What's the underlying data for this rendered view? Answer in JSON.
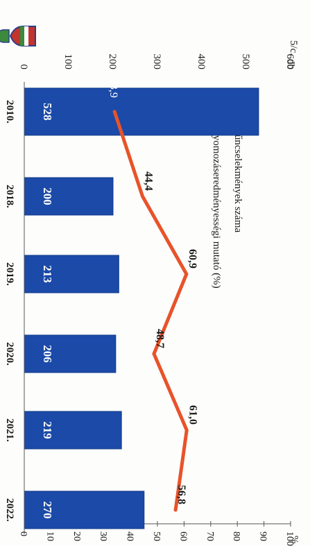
{
  "page": {
    "label": "5/c."
  },
  "chart_data": {
    "type": "bar",
    "orientation": "rotated-90-clockwise",
    "categories": [
      "2010.",
      "2018.",
      "2019.",
      "2020.",
      "2021.",
      "2022."
    ],
    "series": [
      {
        "name": "Bűncselekmények száma",
        "kind": "bar",
        "axis": "left",
        "values": [
          528,
          200,
          213,
          206,
          219,
          270
        ],
        "data_labels": [
          "528",
          "200",
          "213",
          "206",
          "219",
          "270"
        ],
        "color": "#1b4aa8"
      },
      {
        "name": "Nyomozáseredményességi mutató (%)",
        "kind": "line",
        "axis": "right",
        "values": [
          33.9,
          44.4,
          60.9,
          48.7,
          61.0,
          56.8
        ],
        "data_labels": [
          "33,9",
          "44,4",
          "60,9",
          "48,7",
          "61,0",
          "56,8"
        ],
        "color": "#e8532a"
      }
    ],
    "left_axis": {
      "unit": "db",
      "range": [
        0,
        600
      ],
      "ticks": [
        0,
        100,
        200,
        300,
        400,
        500,
        600
      ],
      "tick_labels": [
        "0",
        "100",
        "200",
        "300",
        "400",
        "500",
        "600"
      ]
    },
    "right_axis": {
      "unit": "%",
      "range": [
        0,
        100
      ],
      "ticks": [
        0,
        10,
        20,
        30,
        40,
        50,
        60,
        70,
        80,
        90,
        100
      ],
      "tick_labels": [
        "0",
        "10",
        "20",
        "30",
        "40",
        "50",
        "60",
        "70",
        "80",
        "90",
        "100"
      ]
    },
    "legend_position": "top",
    "grid": false
  },
  "colors": {
    "bar": "#1b4aa8",
    "bar_edge": "#123a8a",
    "line": "#e8532a",
    "text": "#1a1a1a"
  },
  "icons": [
    "police-crest-icon",
    "coat-of-arms-icon"
  ]
}
